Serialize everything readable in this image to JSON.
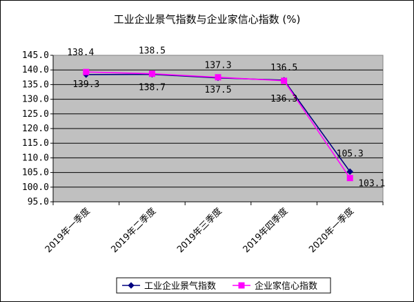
{
  "chart_data": {
    "type": "line",
    "title": "工业企业景气指数与企业家信心指数 (%)",
    "categories": [
      "2019年一季度",
      "2019年二季度",
      "2019年三季度",
      "2019年四季度",
      "2020年一季度"
    ],
    "series": [
      {
        "name": "工业企业景气指数",
        "values": [
          138.4,
          138.5,
          137.3,
          136.5,
          105.3
        ],
        "value_labels": [
          "138.4",
          "138.5",
          "137.3",
          "136.5",
          "105.3"
        ],
        "color": "#000080",
        "marker": "diamond"
      },
      {
        "name": "企业家信心指数",
        "values": [
          139.3,
          138.7,
          137.5,
          136.3,
          103.1
        ],
        "value_labels": [
          "139.3",
          "138.7",
          "137.5",
          "136.3",
          "103.1"
        ],
        "color": "#ff00ff",
        "marker": "square"
      }
    ],
    "ylim": [
      95.0,
      145.0
    ],
    "ytick_labels": [
      "95.0",
      "100.0",
      "105.0",
      "110.0",
      "115.0",
      "120.0",
      "125.0",
      "130.0",
      "135.0",
      "140.0",
      "145.0"
    ],
    "grid": "horizontal",
    "plot_background": "#c0c0c0",
    "legend_position": "bottom"
  }
}
